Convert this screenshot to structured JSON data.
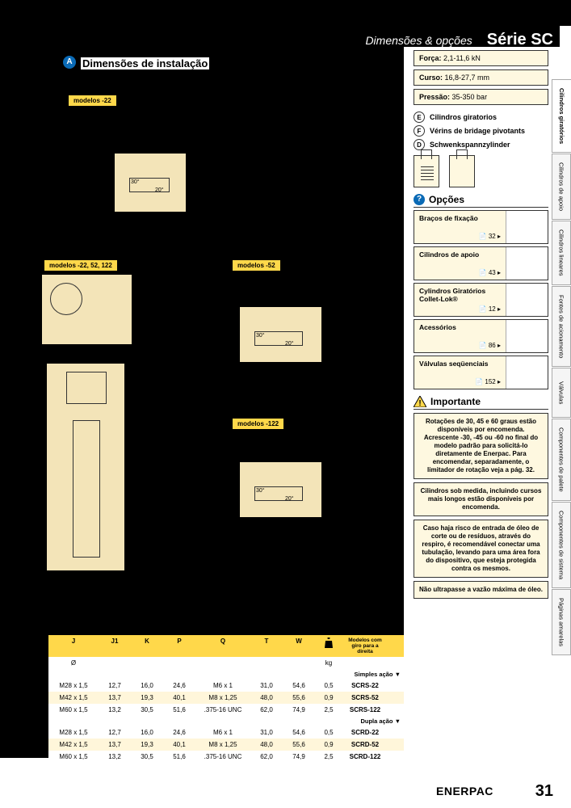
{
  "header": {
    "subtitle": "Dimensões & opções",
    "title": "Série SC"
  },
  "section": {
    "icon": "A",
    "title": "Dimensões de instalação"
  },
  "model_labels": {
    "m22": "modelos -22",
    "m225212": "modelos -22, 52, 122",
    "m52": "modelos -52",
    "m122": "modelos -122"
  },
  "specs": [
    {
      "label": "Força:",
      "value": "2,1-11,6 kN"
    },
    {
      "label": "Curso:",
      "value": "16,8-27,7 mm"
    },
    {
      "label": "Pressão:",
      "value": "35-350 bar"
    }
  ],
  "langs": [
    {
      "code": "E",
      "text": "Cilindros giratorios"
    },
    {
      "code": "F",
      "text": "Vérins de bridage pivotants"
    },
    {
      "code": "D",
      "text": "Schwenkspannzylinder"
    }
  ],
  "options_title": "Opções",
  "options": [
    {
      "name": "Braços de fixação",
      "page": "32"
    },
    {
      "name": "Cilindros de apoio",
      "page": "43"
    },
    {
      "name": "Cylindros Giratórios Collet-Lok®",
      "page": "12"
    },
    {
      "name": "Acessórios",
      "page": "86"
    },
    {
      "name": "Válvulas seqüenciais",
      "page": "152"
    }
  ],
  "important_title": "Importante",
  "notes": [
    "Rotações de 30, 45 e 60 graus estão disponíveis por encomenda. Acrescente -30, -45 ou -60 no final do modelo padrão para solicitá-lo diretamente de Enerpac. Para encomendar, separadamente, o limitador de rotação veja a pág. 32.",
    "Cilindros sob medida, incluindo cursos mais longos estão disponíveis por encomenda.",
    "Caso haja risco de entrada de óleo de corte ou de resíduos, através do respiro, é recomendável conectar uma tubulação, levando para uma área fora do dispositivo, que esteja protegida contra os mesmos.",
    "Não ultrapasse a vazão máxima de óleo."
  ],
  "tabs": [
    "Cilindros giratórios",
    "Cilindros de apoio",
    "Cilindros lineares",
    "Fontes de acionamento",
    "Válvulas",
    "Componentes de palete",
    "Componentes de sistema",
    "Páginas amarelas"
  ],
  "table": {
    "headers": [
      "J",
      "J1",
      "K",
      "P",
      "Q",
      "T",
      "W",
      "",
      "Modelos com giro para a direita"
    ],
    "diam": "Ø",
    "kg": "kg",
    "action1": "Simples ação ▼",
    "action2": "Dupla ação ▼",
    "rows1": [
      [
        "M28 x 1,5",
        "12,7",
        "16,0",
        "24,6",
        "M6 x 1",
        "31,0",
        "54,6",
        "0,5",
        "SCRS-22"
      ],
      [
        "M42 x 1,5",
        "13,7",
        "19,3",
        "40,1",
        "M8 x 1,25",
        "48,0",
        "55,6",
        "0,9",
        "SCRS-52"
      ],
      [
        "M60 x 1,5",
        "13,2",
        "30,5",
        "51,6",
        ".375-16 UNC",
        "62,0",
        "74,9",
        "2,5",
        "SCRS-122"
      ]
    ],
    "rows2": [
      [
        "M28 x 1,5",
        "12,7",
        "16,0",
        "24,6",
        "M6 x 1",
        "31,0",
        "54,6",
        "0,5",
        "SCRD-22"
      ],
      [
        "M42 x 1,5",
        "13,7",
        "19,3",
        "40,1",
        "M8 x 1,25",
        "48,0",
        "55,6",
        "0,9",
        "SCRD-52"
      ],
      [
        "M60 x 1,5",
        "13,2",
        "30,5",
        "51,6",
        ".375-16 UNC",
        "62,0",
        "74,9",
        "2,5",
        "SCRD-122"
      ]
    ]
  },
  "footer": {
    "brand": "ENERPAC",
    "page": "31"
  },
  "colors": {
    "accent": "#ffd84a",
    "panel": "#fef8e0",
    "blue": "#0a6ab6",
    "diagram": "#f3e4b8"
  }
}
